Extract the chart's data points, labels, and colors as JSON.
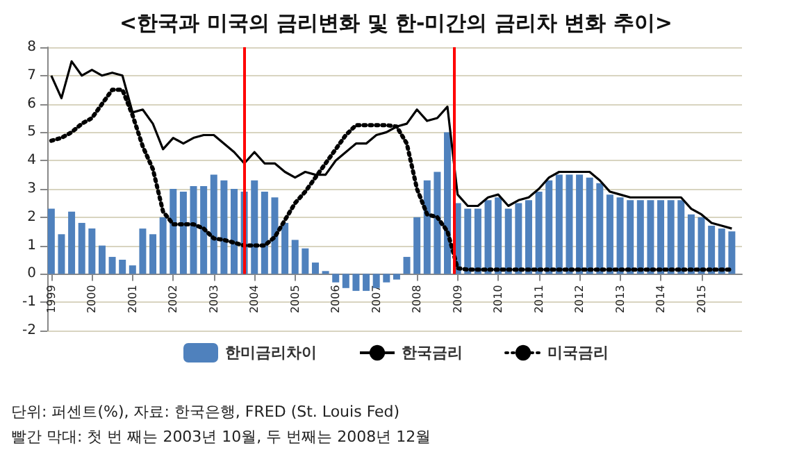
{
  "chart_data": {
    "type": "bar",
    "title": "<한국과 미국의 금리변화 및 한-미간의 금리차 변화 추이>",
    "x": [
      1999,
      1999.25,
      1999.5,
      1999.75,
      2000,
      2000.25,
      2000.5,
      2000.75,
      2001,
      2001.25,
      2001.5,
      2001.75,
      2002,
      2002.25,
      2002.5,
      2002.75,
      2003,
      2003.25,
      2003.5,
      2003.75,
      2004,
      2004.25,
      2004.5,
      2004.75,
      2005,
      2005.25,
      2005.5,
      2005.75,
      2006,
      2006.25,
      2006.5,
      2006.75,
      2007,
      2007.25,
      2007.5,
      2007.75,
      2008,
      2008.25,
      2008.5,
      2008.75,
      2009,
      2009.25,
      2009.5,
      2009.75,
      2010,
      2010.25,
      2010.5,
      2010.75,
      2011,
      2011.25,
      2011.5,
      2011.75,
      2012,
      2012.25,
      2012.5,
      2012.75,
      2013,
      2013.25,
      2013.5,
      2013.75,
      2014,
      2014.25,
      2014.5,
      2014.75,
      2015,
      2015.25,
      2015.5,
      2015.75
    ],
    "series": [
      {
        "name": "한미금리차이",
        "color": "#4f81bd",
        "values": [
          2.3,
          1.4,
          2.2,
          1.8,
          1.6,
          1.0,
          0.6,
          0.5,
          0.3,
          1.6,
          1.4,
          2.0,
          3.0,
          2.9,
          3.1,
          3.1,
          3.5,
          3.3,
          3.0,
          2.9,
          3.3,
          2.9,
          2.7,
          1.8,
          1.2,
          0.9,
          0.4,
          0.1,
          -0.3,
          -0.5,
          -0.6,
          -0.6,
          -0.5,
          -0.3,
          -0.2,
          0.6,
          2.0,
          3.3,
          3.6,
          5.0,
          2.5,
          2.3,
          2.3,
          2.6,
          2.7,
          2.3,
          2.5,
          2.6,
          2.9,
          3.3,
          3.5,
          3.5,
          3.5,
          3.4,
          3.2,
          2.8,
          2.7,
          2.6,
          2.6,
          2.6,
          2.6,
          2.6,
          2.6,
          2.1,
          2.0,
          1.7,
          1.6,
          1.5
        ]
      },
      {
        "name": "한국금리",
        "type": "line",
        "color": "#000000",
        "line_style": "solid",
        "values": [
          7.0,
          6.2,
          7.5,
          7.0,
          7.2,
          7.0,
          7.1,
          7.0,
          5.7,
          5.8,
          5.3,
          4.4,
          4.8,
          4.6,
          4.8,
          4.9,
          4.9,
          4.6,
          4.3,
          3.9,
          4.3,
          3.9,
          3.9,
          3.6,
          3.4,
          3.6,
          3.5,
          3.5,
          4.0,
          4.3,
          4.6,
          4.6,
          4.9,
          5.0,
          5.2,
          5.3,
          5.8,
          5.4,
          5.5,
          5.9,
          2.8,
          2.4,
          2.4,
          2.7,
          2.8,
          2.4,
          2.6,
          2.7,
          3.0,
          3.4,
          3.6,
          3.6,
          3.6,
          3.6,
          3.3,
          2.9,
          2.8,
          2.7,
          2.7,
          2.7,
          2.7,
          2.7,
          2.7,
          2.3,
          2.1,
          1.8,
          1.7,
          1.6
        ]
      },
      {
        "name": "미국금리",
        "type": "line",
        "color": "#000000",
        "line_style": "dotted",
        "values": [
          4.7,
          4.8,
          5.0,
          5.3,
          5.5,
          6.0,
          6.5,
          6.5,
          5.6,
          4.5,
          3.7,
          2.2,
          1.75,
          1.75,
          1.75,
          1.6,
          1.25,
          1.2,
          1.1,
          1.0,
          1.0,
          1.0,
          1.3,
          1.9,
          2.5,
          2.9,
          3.4,
          3.9,
          4.4,
          4.9,
          5.25,
          5.25,
          5.25,
          5.25,
          5.2,
          4.6,
          3.0,
          2.1,
          2.0,
          1.5,
          0.2,
          0.15,
          0.15,
          0.15,
          0.15,
          0.15,
          0.15,
          0.15,
          0.15,
          0.15,
          0.15,
          0.15,
          0.15,
          0.15,
          0.15,
          0.15,
          0.15,
          0.15,
          0.15,
          0.15,
          0.15,
          0.15,
          0.15,
          0.15,
          0.15,
          0.15,
          0.15,
          0.15
        ]
      }
    ],
    "xlim": [
      1998.9,
      2016
    ],
    "xticks": [
      1999,
      2000,
      2001,
      2002,
      2003,
      2004,
      2005,
      2006,
      2007,
      2008,
      2009,
      2010,
      2011,
      2012,
      2013,
      2014,
      2015
    ],
    "ylim": [
      -2,
      8
    ],
    "yticks": [
      -2,
      -1,
      0,
      1,
      2,
      3,
      4,
      5,
      6,
      7,
      8
    ],
    "ref_lines": [
      {
        "axis": "x",
        "value": 2003.75,
        "color": "#ff0000"
      },
      {
        "axis": "x",
        "value": 2008.92,
        "color": "#ff0000"
      }
    ],
    "grid": "y",
    "legend": "bottom",
    "marker": "none",
    "annotations": [
      "단위: 퍼센트(%), 자료: 한국은행, FRED (St. Louis Fed)",
      "빨간 막대: 첫 번 째는 2003년 10월, 두 번째는 2008년 12월"
    ]
  }
}
